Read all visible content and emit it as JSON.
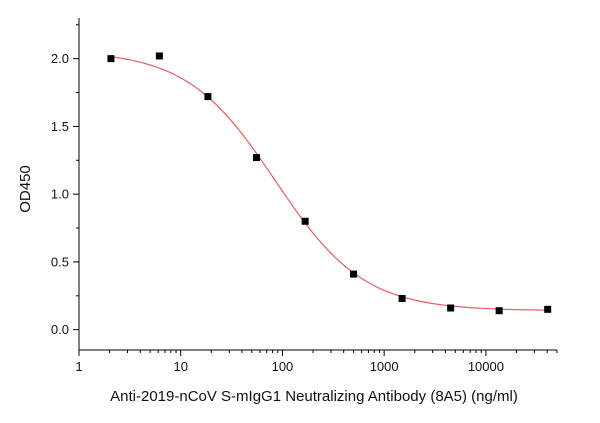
{
  "chart_data": {
    "type": "scatter",
    "title": "",
    "xlabel": "Anti-2019-nCoV S-mIgG1 Neutralizing Antibody (8A5) (ng/ml)",
    "ylabel": "OD450",
    "x_scale": "log",
    "xlim": [
      1,
      50000
    ],
    "ylim": [
      -0.15,
      2.3
    ],
    "grid": false,
    "legend": "none",
    "x_ticks": [
      {
        "value": 1,
        "label": "1"
      },
      {
        "value": 10,
        "label": "10"
      },
      {
        "value": 100,
        "label": "100"
      },
      {
        "value": 1000,
        "label": "1000"
      },
      {
        "value": 10000,
        "label": "10000"
      }
    ],
    "y_ticks": [
      {
        "value": 0.0,
        "label": "0.0"
      },
      {
        "value": 0.5,
        "label": "0.5"
      },
      {
        "value": 1.0,
        "label": "1.0"
      },
      {
        "value": 1.5,
        "label": "1.5"
      },
      {
        "value": 2.0,
        "label": "2.0"
      }
    ],
    "series": [
      {
        "marker": "square",
        "color": "#000000",
        "points": [
          {
            "x": 2.06,
            "y": 2.0
          },
          {
            "x": 6.17,
            "y": 2.02
          },
          {
            "x": 18.5,
            "y": 1.72
          },
          {
            "x": 55.6,
            "y": 1.27
          },
          {
            "x": 167,
            "y": 0.8
          },
          {
            "x": 500,
            "y": 0.41
          },
          {
            "x": 1500,
            "y": 0.23
          },
          {
            "x": 4500,
            "y": 0.16
          },
          {
            "x": 13500,
            "y": 0.14
          },
          {
            "x": 40500,
            "y": 0.15
          }
        ]
      }
    ],
    "fit": {
      "model": "4PL",
      "color": "#e06060",
      "top": 2.06,
      "bottom": 0.14,
      "ec50": 85,
      "hill": 1.0
    }
  }
}
